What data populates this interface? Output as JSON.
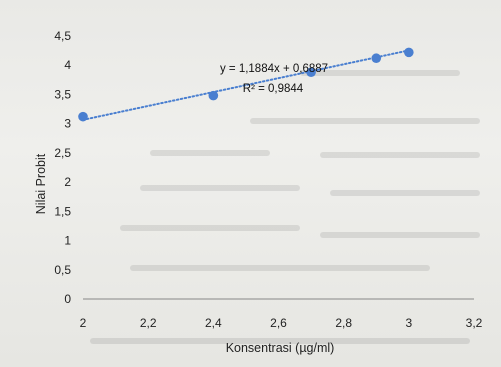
{
  "chart_data": {
    "type": "scatter",
    "title": "",
    "xlabel": "Konsentrasi (µg/ml)",
    "ylabel": "Nilai Probit",
    "xlim": [
      2,
      3.2
    ],
    "ylim": [
      0,
      4.5
    ],
    "x_ticks": [
      "2",
      "2,2",
      "2,4",
      "2,6",
      "2,8",
      "3",
      "3,2"
    ],
    "y_ticks": [
      "0",
      "0,5",
      "1",
      "1,5",
      "2",
      "2,5",
      "3",
      "3,5",
      "4",
      "4,5"
    ],
    "x_tick_values": [
      2,
      2.2,
      2.4,
      2.6,
      2.8,
      3,
      3.2
    ],
    "y_tick_values": [
      0,
      0.5,
      1,
      1.5,
      2,
      2.5,
      3,
      3.5,
      4,
      4.5
    ],
    "x": [
      2,
      2.4,
      2.7,
      2.9,
      3
    ],
    "y": [
      3.12,
      3.48,
      3.88,
      4.12,
      4.22
    ],
    "trendline": {
      "type": "linear",
      "slope": 1.1884,
      "intercept": 0.6887,
      "equation_label": "y = 1,1884x + 0,6887",
      "r2_label": "R² = 0,9844"
    },
    "grid": false,
    "legend": "none",
    "colors": {
      "points": "#4a7fd0",
      "trendline": "#4a7fd0",
      "axis": "#9a9a9a"
    }
  }
}
